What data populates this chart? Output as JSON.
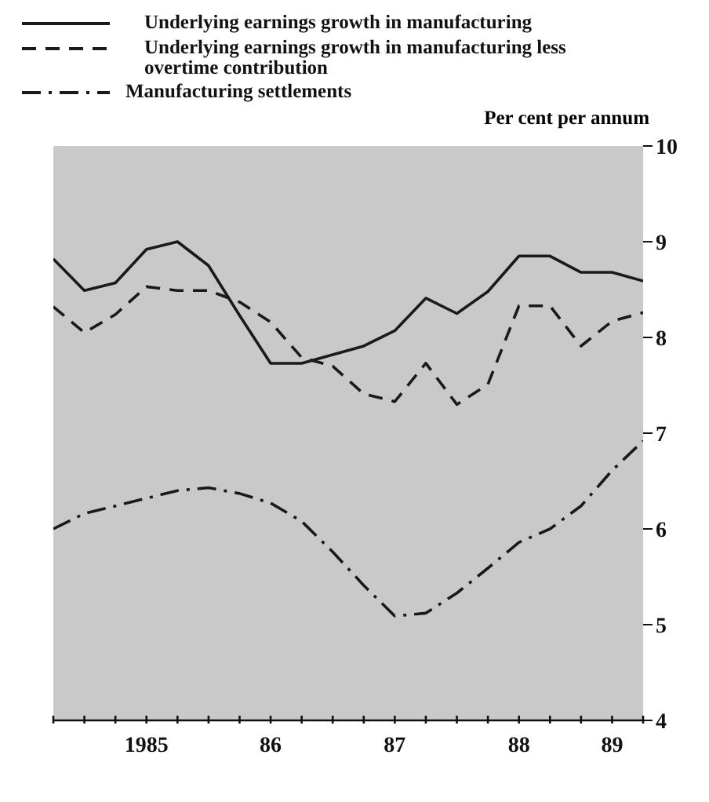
{
  "chart_data": {
    "type": "line",
    "ylabel": "Per cent per annum",
    "legend": "top",
    "grid": false,
    "categories": [
      null,
      null,
      null,
      "1985",
      null,
      null,
      null,
      "86",
      null,
      null,
      null,
      "87",
      null,
      null,
      null,
      "88",
      null,
      null,
      "89",
      null
    ],
    "ylim": [
      4,
      10
    ],
    "yticks": [
      4,
      5,
      6,
      7,
      8,
      9,
      10
    ],
    "series": [
      {
        "name": "Underlying earnings growth in manufacturing",
        "color": "#1a1a1a",
        "line_style": "solid",
        "values": [
          8.82,
          8.49,
          8.57,
          8.92,
          9.0,
          8.75,
          8.23,
          7.73,
          7.73,
          7.82,
          7.91,
          8.07,
          8.41,
          8.25,
          8.48,
          8.85,
          8.85,
          8.68,
          8.68,
          8.59
        ]
      },
      {
        "name": "Underlying earnings growth in manufacturing less overtime contribution",
        "color": "#1a1a1a",
        "line_style": "dashed",
        "values": [
          8.32,
          8.05,
          8.24,
          8.53,
          8.49,
          8.49,
          8.37,
          8.16,
          7.79,
          7.7,
          7.41,
          7.33,
          7.73,
          7.3,
          7.51,
          8.33,
          8.33,
          7.91,
          8.17,
          8.26
        ]
      },
      {
        "name": "Manufacturing settlements",
        "color": "#1a1a1a",
        "line_style": "dashdot",
        "values": [
          6.0,
          6.16,
          6.24,
          6.32,
          6.4,
          6.43,
          6.37,
          6.27,
          6.08,
          5.76,
          5.41,
          5.09,
          5.12,
          5.33,
          5.59,
          5.86,
          6.0,
          6.24,
          6.61,
          6.92
        ]
      }
    ]
  }
}
